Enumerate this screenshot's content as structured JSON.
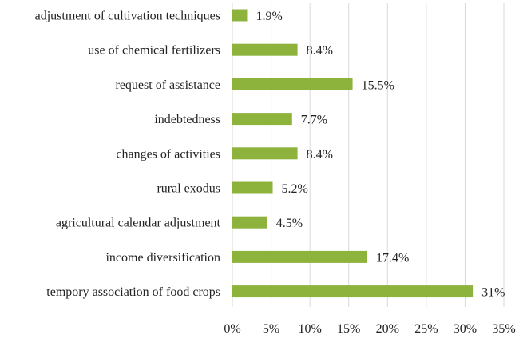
{
  "chart_data": {
    "type": "bar",
    "orientation": "horizontal",
    "categories": [
      "adjustment of cultivation techniques",
      "use of chemical fertilizers",
      "request of assistance",
      "indebtedness",
      "changes of activities",
      "rural exodus",
      "agricultural calendar adjustment",
      "income diversification",
      "tempory association of food crops"
    ],
    "values": [
      1.9,
      8.4,
      15.5,
      7.7,
      8.4,
      5.2,
      4.5,
      17.4,
      31
    ],
    "data_labels": [
      "1.9%",
      "8.4%",
      "15.5%",
      "7.7%",
      "8.4%",
      "5.2%",
      "4.5%",
      "17.4%",
      "31%"
    ],
    "xlim": [
      0,
      35
    ],
    "xticks": [
      0,
      5,
      10,
      15,
      20,
      25,
      30,
      35
    ],
    "xtick_labels": [
      "0%",
      "5%",
      "10%",
      "15%",
      "20%",
      "25%",
      "30%",
      "35%"
    ],
    "grid": "vertical",
    "legend": "none",
    "bar_color": "#8db33d",
    "title": "",
    "xlabel": "",
    "ylabel": ""
  }
}
